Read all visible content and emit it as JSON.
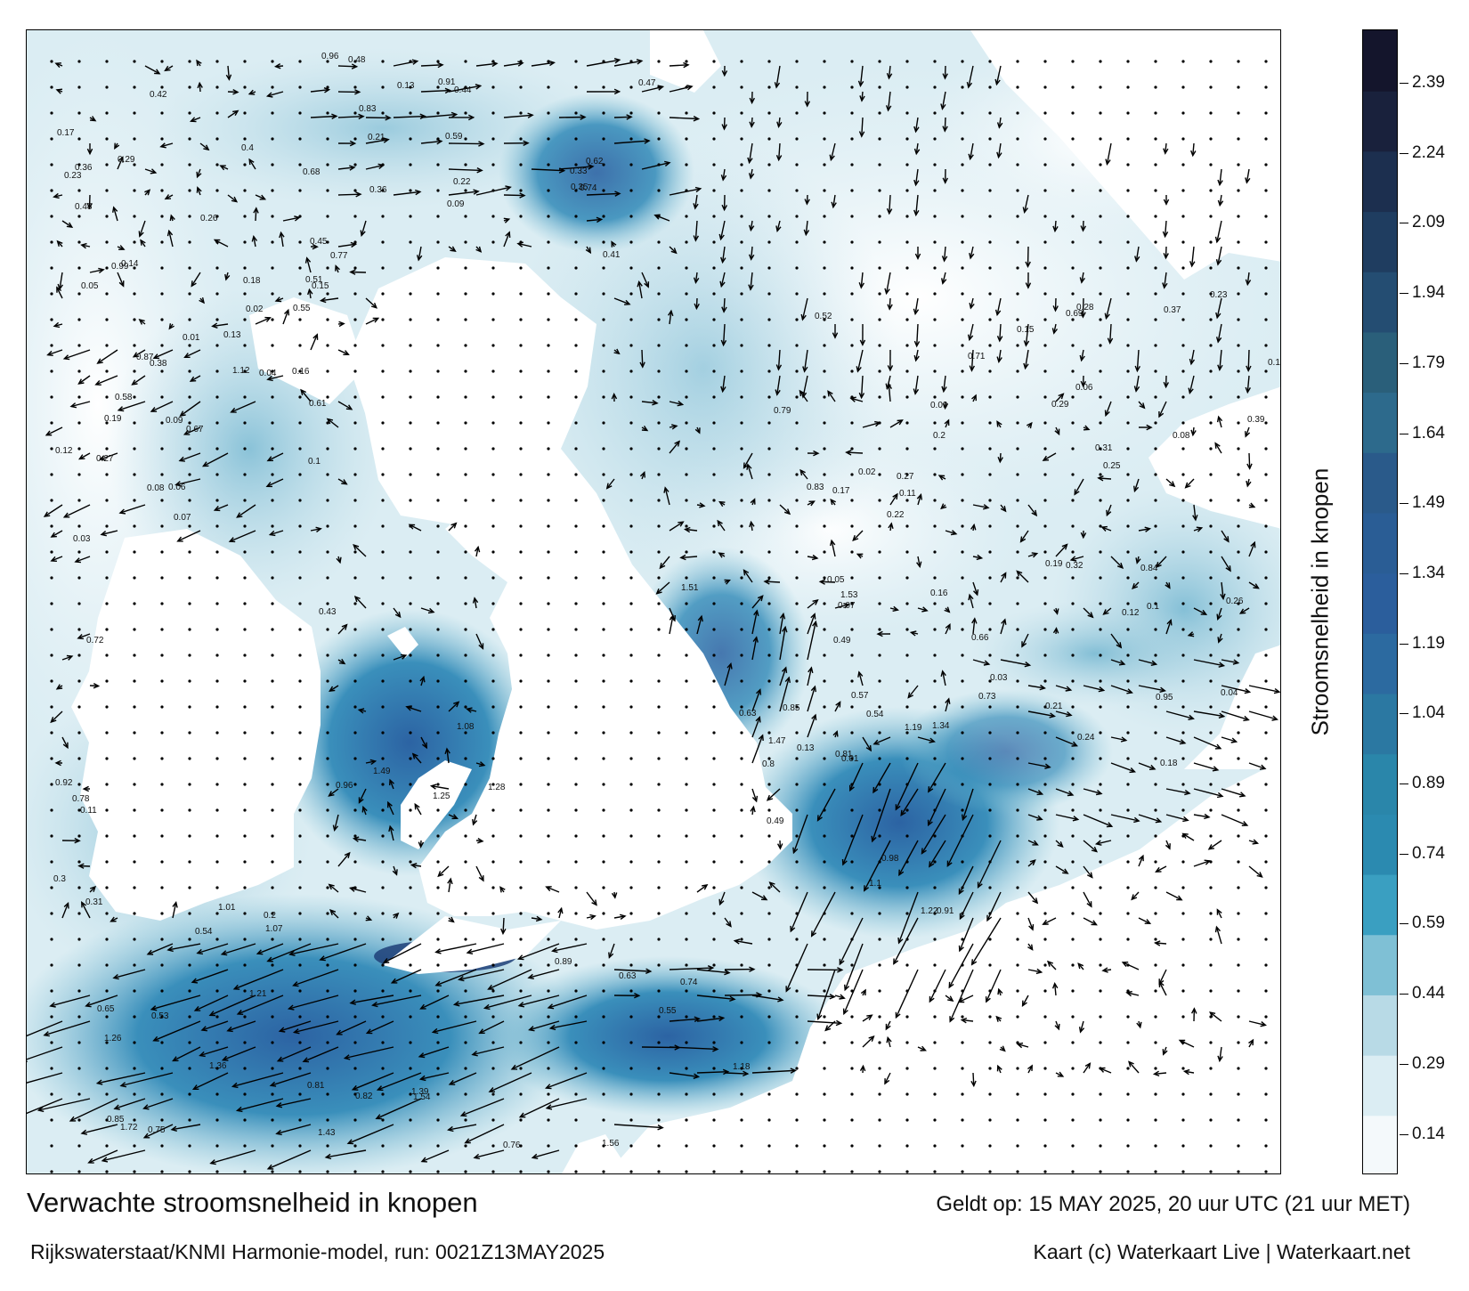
{
  "title": "Verwachte stroomsnelheid in knopen",
  "subtitle": "Rijkswaterstaat/KNMI Harmonie-model, run: 0021Z13MAY2025",
  "valid_time": "Geldt op: 15 MAY 2025, 20 uur UTC (21 uur MET)",
  "credit": "Kaart (c) Waterkaart Live | Waterkaart.net",
  "legend": {
    "title": "Stroomsnelheid in knopen",
    "ticks": [
      "2.39",
      "2.24",
      "2.09",
      "1.94",
      "1.79",
      "1.64",
      "1.49",
      "1.34",
      "1.19",
      "1.04",
      "0.89",
      "0.74",
      "0.59",
      "0.44",
      "0.29",
      "0.14"
    ],
    "colors": [
      "#f4f9fb",
      "#dbedf3",
      "#b8dae6",
      "#7fc0d5",
      "#3a9fc1",
      "#2b8ab0",
      "#2a86aa",
      "#2b78a2",
      "#2c6aa0",
      "#2b5e9c",
      "#2a5d95",
      "#2a5a8a",
      "#2d6a8c",
      "#2a5f7a",
      "#244d72",
      "#1f3d60",
      "#1c2f4f",
      "#19213c",
      "#14152c"
    ]
  },
  "map": {
    "colors": {
      "land": "#ffffff",
      "sea_light": "#eaf4f8",
      "sea_mid": "#8ec6da",
      "sea_strong": "#3a8fbb",
      "sea_fast": "#2c63a3",
      "sea_max": "#1f3f78",
      "arrow": "#000000"
    },
    "speed_labels": [
      {
        "t": "0.22",
        "region": "north"
      },
      {
        "t": "0.21",
        "region": "north"
      },
      {
        "t": "0.48",
        "region": "north"
      },
      {
        "t": "0.33",
        "region": "north"
      },
      {
        "t": "0.41",
        "region": "north"
      },
      {
        "t": "0.13",
        "region": "north"
      },
      {
        "t": "0.09",
        "region": "north"
      },
      {
        "t": "0.8",
        "region": "channel"
      },
      {
        "t": "0.49",
        "region": "channel"
      },
      {
        "t": "1.19",
        "region": "channel"
      },
      {
        "t": "1.34",
        "region": "channel"
      },
      {
        "t": "1.53",
        "region": "channel"
      },
      {
        "t": "1.51",
        "region": "channel"
      },
      {
        "t": "1.22",
        "region": "channel"
      },
      {
        "t": "1.47",
        "region": "channel"
      },
      {
        "t": "0.98",
        "region": "channel"
      },
      {
        "t": "0.81",
        "region": "channel"
      },
      {
        "t": "0.73",
        "region": "channel"
      },
      {
        "t": "0.66",
        "region": "channel"
      },
      {
        "t": "0.85",
        "region": "channel"
      },
      {
        "t": "0.91",
        "region": "channel"
      },
      {
        "t": "0.63",
        "region": "channel"
      },
      {
        "t": "1.1",
        "region": "channel"
      },
      {
        "t": "1.49",
        "region": "irish"
      },
      {
        "t": "1.28",
        "region": "irish"
      },
      {
        "t": "1.08",
        "region": "irish"
      },
      {
        "t": "1.25",
        "region": "irish"
      },
      {
        "t": "0.96",
        "region": "irish"
      },
      {
        "t": "0.74",
        "region": "biscay"
      },
      {
        "t": "0.85",
        "region": "biscay"
      },
      {
        "t": "0.81",
        "region": "biscay"
      },
      {
        "t": "0.82",
        "region": "biscay"
      },
      {
        "t": "0.75",
        "region": "biscay"
      },
      {
        "t": "0.63",
        "region": "biscay"
      },
      {
        "t": "0.65",
        "region": "biscay"
      },
      {
        "t": "0.53",
        "region": "biscay"
      },
      {
        "t": "0.54",
        "region": "biscay"
      },
      {
        "t": "1.36",
        "region": "biscay"
      },
      {
        "t": "1.43",
        "region": "biscay"
      },
      {
        "t": "1.26",
        "region": "biscay"
      },
      {
        "t": "1.18",
        "region": "biscay"
      },
      {
        "t": "1.56",
        "region": "biscay"
      },
      {
        "t": "1.54",
        "region": "biscay"
      },
      {
        "t": "1.72",
        "region": "biscay"
      },
      {
        "t": "1.39",
        "region": "biscay"
      },
      {
        "t": "1.21",
        "region": "biscay"
      },
      {
        "t": "1.07",
        "region": "biscay"
      },
      {
        "t": "0.89",
        "region": "biscay"
      },
      {
        "t": "0.76",
        "region": "biscay"
      },
      {
        "t": "0.55",
        "region": "biscay"
      },
      {
        "t": "0.32",
        "region": "east"
      },
      {
        "t": "0.37",
        "region": "east"
      },
      {
        "t": "0.39",
        "region": "east"
      },
      {
        "t": "0.31",
        "region": "east"
      },
      {
        "t": "0.54",
        "region": "east"
      },
      {
        "t": "0.52",
        "region": "east"
      },
      {
        "t": "0.49",
        "region": "east"
      },
      {
        "t": "0.57",
        "region": "east"
      },
      {
        "t": "0.69",
        "region": "east"
      },
      {
        "t": "0.71",
        "region": "east"
      },
      {
        "t": "0.79",
        "region": "east"
      },
      {
        "t": "0.84",
        "region": "east"
      },
      {
        "t": "0.95",
        "region": "east"
      },
      {
        "t": "0.83",
        "region": "east"
      },
      {
        "t": "0.23",
        "region": "east"
      },
      {
        "t": "0.29",
        "region": "east"
      },
      {
        "t": "0.12",
        "region": "east"
      },
      {
        "t": "0.16",
        "region": "east"
      },
      {
        "t": "0.05",
        "region": "east"
      },
      {
        "t": "0.02",
        "region": "east"
      },
      {
        "t": "0.03",
        "region": "east"
      },
      {
        "t": "0.08",
        "region": "east"
      },
      {
        "t": "0.04",
        "region": "east"
      },
      {
        "t": "0.21",
        "region": "east"
      },
      {
        "t": "0.26",
        "region": "east"
      },
      {
        "t": "0.17",
        "region": "east"
      },
      {
        "t": "0.14",
        "region": "east"
      },
      {
        "t": "0.18",
        "region": "east"
      },
      {
        "t": "0.11",
        "region": "east"
      },
      {
        "t": "0.13",
        "region": "east"
      },
      {
        "t": "0.1",
        "region": "east"
      },
      {
        "t": "0.06",
        "region": "east"
      },
      {
        "t": "0.07",
        "region": "east"
      },
      {
        "t": "0.01",
        "region": "east"
      },
      {
        "t": "0.15",
        "region": "east"
      },
      {
        "t": "0.19",
        "region": "east"
      },
      {
        "t": "0.2",
        "region": "east"
      },
      {
        "t": "0.27",
        "region": "east"
      },
      {
        "t": "0.28",
        "region": "east"
      },
      {
        "t": "0.24",
        "region": "east"
      },
      {
        "t": "0.22",
        "region": "east"
      },
      {
        "t": "0.25",
        "region": "east"
      },
      {
        "t": "0.09",
        "region": "east"
      },
      {
        "t": "0.35",
        "region": "north"
      },
      {
        "t": "0.45",
        "region": "north"
      },
      {
        "t": "0.62",
        "region": "north"
      },
      {
        "t": "0.83",
        "region": "north"
      },
      {
        "t": "0.96",
        "region": "north"
      },
      {
        "t": "0.91",
        "region": "north"
      },
      {
        "t": "0.74",
        "region": "north"
      },
      {
        "t": "0.77",
        "region": "north"
      },
      {
        "t": "0.59",
        "region": "north"
      },
      {
        "t": "0.47",
        "region": "north"
      },
      {
        "t": "0.44",
        "region": "north"
      },
      {
        "t": "0.36",
        "region": "north"
      },
      {
        "t": "0.17",
        "region": "west"
      },
      {
        "t": "0.05",
        "region": "west"
      },
      {
        "t": "0.07",
        "region": "west"
      },
      {
        "t": "0.06",
        "region": "west"
      },
      {
        "t": "0.03",
        "region": "west"
      },
      {
        "t": "0.04",
        "region": "west"
      },
      {
        "t": "0.02",
        "region": "west"
      },
      {
        "t": "0.08",
        "region": "west"
      },
      {
        "t": "0.11",
        "region": "west"
      },
      {
        "t": "0.12",
        "region": "west"
      },
      {
        "t": "0.09",
        "region": "west"
      },
      {
        "t": "0.1",
        "region": "west"
      },
      {
        "t": "0.14",
        "region": "west"
      },
      {
        "t": "0.16",
        "region": "west"
      },
      {
        "t": "0.19",
        "region": "west"
      },
      {
        "t": "0.23",
        "region": "west"
      },
      {
        "t": "0.27",
        "region": "west"
      },
      {
        "t": "0.3",
        "region": "west"
      },
      {
        "t": "0.36",
        "region": "west"
      },
      {
        "t": "0.4",
        "region": "west"
      },
      {
        "t": "0.43",
        "region": "west"
      },
      {
        "t": "0.51",
        "region": "west"
      },
      {
        "t": "0.55",
        "region": "west"
      },
      {
        "t": "0.58",
        "region": "west"
      },
      {
        "t": "0.61",
        "region": "west"
      },
      {
        "t": "0.67",
        "region": "west"
      },
      {
        "t": "0.72",
        "region": "west"
      },
      {
        "t": "0.78",
        "region": "west"
      },
      {
        "t": "0.87",
        "region": "west"
      },
      {
        "t": "0.92",
        "region": "west"
      },
      {
        "t": "1.01",
        "region": "west"
      },
      {
        "t": "1.12",
        "region": "west"
      },
      {
        "t": "0.99",
        "region": "west"
      },
      {
        "t": "0.68",
        "region": "west"
      },
      {
        "t": "0.48",
        "region": "west"
      },
      {
        "t": "0.42",
        "region": "west"
      },
      {
        "t": "0.38",
        "region": "west"
      },
      {
        "t": "0.31",
        "region": "west"
      },
      {
        "t": "0.29",
        "region": "west"
      },
      {
        "t": "0.26",
        "region": "west"
      },
      {
        "t": "0.2",
        "region": "west"
      },
      {
        "t": "0.18",
        "region": "west"
      },
      {
        "t": "0.15",
        "region": "west"
      },
      {
        "t": "0.13",
        "region": "west"
      },
      {
        "t": "0.01",
        "region": "west"
      }
    ]
  }
}
